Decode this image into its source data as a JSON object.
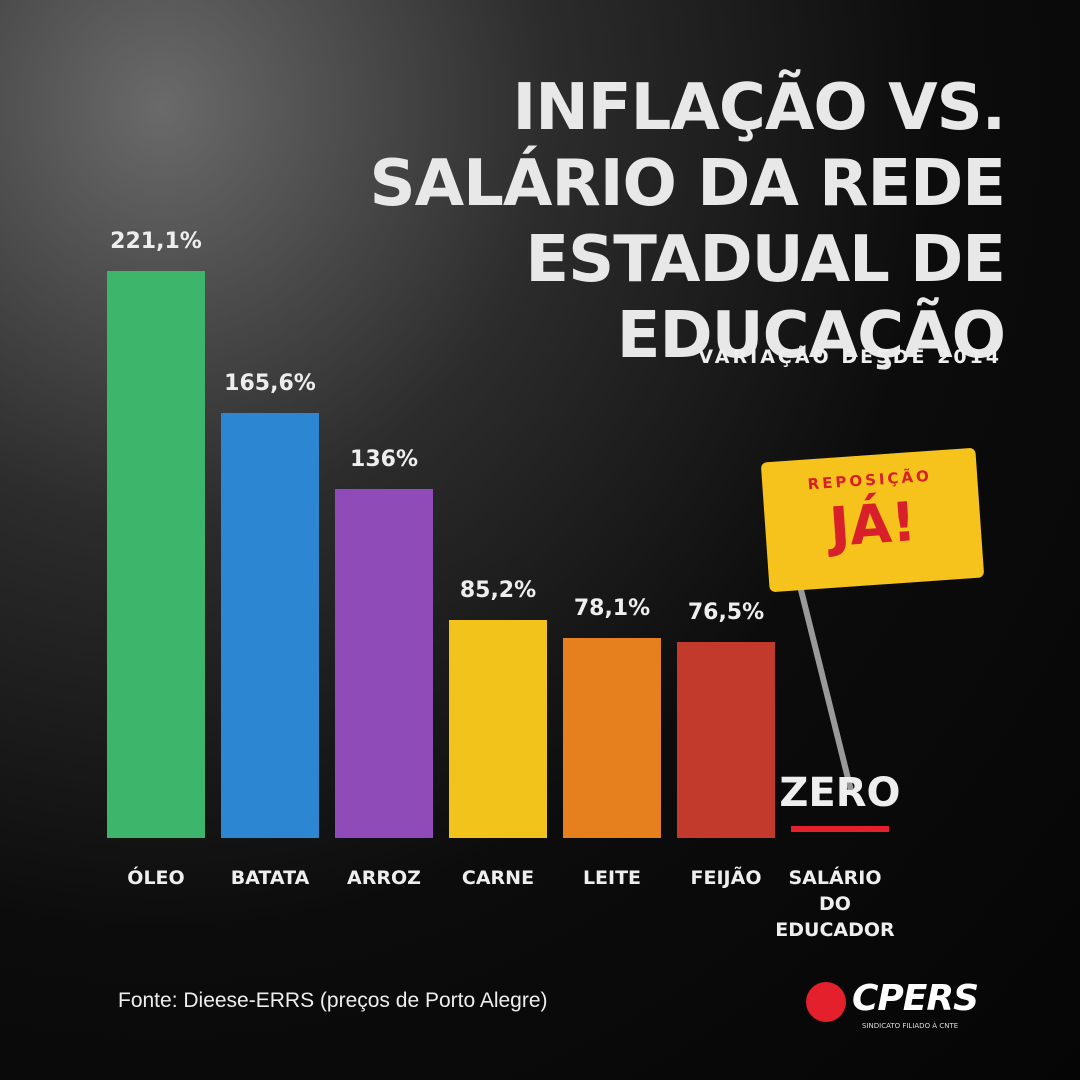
{
  "chart_data": {
    "type": "bar",
    "title": "INFLAÇÃO VS. SALÁRIO DA REDE ESTADUAL DE EDUCAÇÃO",
    "subtitle": "VARIAÇÃO DESDE 2014",
    "categories": [
      "ÓLEO",
      "BATATA",
      "ARROZ",
      "CARNE",
      "LEITE",
      "FEIJÃO",
      "SALÁRIO DO EDUCADOR"
    ],
    "values": [
      221.1,
      165.6,
      136,
      85.2,
      78.1,
      76.5,
      0
    ],
    "value_labels": [
      "221,1%",
      "165,6%",
      "136%",
      "85,2%",
      "78,1%",
      "76,5%",
      "ZERO"
    ],
    "colors": [
      "#3db56a",
      "#2d86d2",
      "#8f4cb9",
      "#f2c31b",
      "#e6801f",
      "#c23a2b",
      "#e3202b"
    ],
    "source": "Fonte: Dieese-ERRS (preços de Porto Alegre)"
  },
  "flag": {
    "top": "REPOSIÇÃO",
    "main": "JÁ!"
  },
  "logo": {
    "name": "CPERS",
    "tagline": "SINDICATO FILIADO À CNTE"
  }
}
